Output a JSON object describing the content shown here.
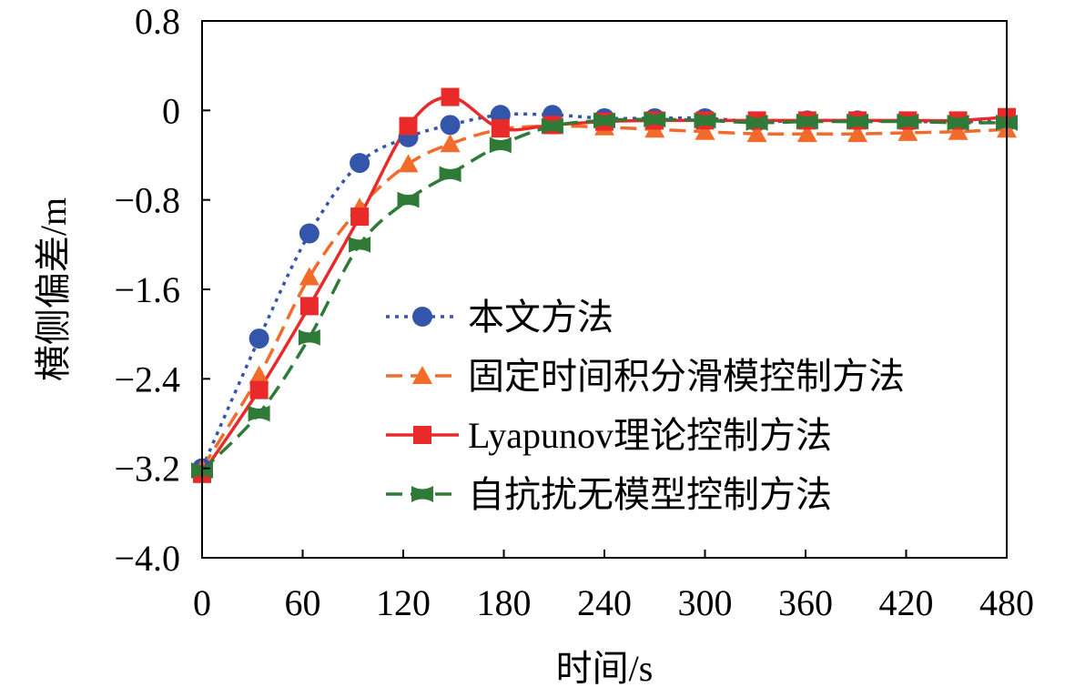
{
  "chart_data": {
    "type": "line",
    "title": "",
    "xlabel": "时间/s",
    "ylabel": "横侧偏差/m",
    "xlim": [
      0,
      480
    ],
    "ylim": [
      -4.0,
      0.8
    ],
    "xticks": [
      0,
      60,
      120,
      180,
      240,
      300,
      360,
      420,
      480
    ],
    "xtick_labels": [
      "0",
      "60",
      "120",
      "180",
      "240",
      "300",
      "360",
      "420",
      "480"
    ],
    "yticks": [
      0.8,
      0,
      -0.8,
      -1.6,
      -2.4,
      -3.2,
      -4.0
    ],
    "ytick_labels": [
      "0.8",
      "0",
      "−0.8",
      "−1.6",
      "−2.4",
      "−3.2",
      "−4.0"
    ],
    "grid": false,
    "legend_position": "center-right",
    "series": [
      {
        "name": "本文方法",
        "color": "#3355aa",
        "line": "dotted",
        "marker": "circle",
        "x": [
          0,
          34,
          64,
          94,
          123,
          148,
          178,
          209,
          240,
          270,
          300,
          331,
          361,
          391,
          421,
          451,
          480
        ],
        "y": [
          -3.2,
          -2.04,
          -1.1,
          -0.47,
          -0.24,
          -0.13,
          -0.04,
          -0.04,
          -0.07,
          -0.07,
          -0.07,
          -0.1,
          -0.09,
          -0.09,
          -0.1,
          -0.1,
          -0.1
        ]
      },
      {
        "name": "固定时间积分滑模控制方法",
        "color": "#f26b2a",
        "line": "dashed",
        "marker": "triangle",
        "x": [
          0,
          34,
          64,
          94,
          123,
          148,
          178,
          209,
          240,
          270,
          300,
          331,
          361,
          391,
          421,
          451,
          480
        ],
        "y": [
          -3.2,
          -2.37,
          -1.49,
          -0.87,
          -0.48,
          -0.3,
          -0.17,
          -0.14,
          -0.15,
          -0.17,
          -0.19,
          -0.21,
          -0.21,
          -0.21,
          -0.2,
          -0.19,
          -0.17
        ]
      },
      {
        "name": "Lyapunov理论控制方法",
        "color": "#e82a2a",
        "line": "solid",
        "marker": "square",
        "x": [
          0,
          34,
          64,
          94,
          123,
          148,
          178,
          209,
          240,
          270,
          300,
          331,
          361,
          391,
          421,
          451,
          480
        ],
        "y": [
          -3.25,
          -2.5,
          -1.75,
          -0.95,
          -0.14,
          0.12,
          -0.16,
          -0.13,
          -0.1,
          -0.09,
          -0.09,
          -0.09,
          -0.09,
          -0.09,
          -0.09,
          -0.09,
          -0.06
        ]
      },
      {
        "name": "自抗扰无模型控制方法",
        "color": "#2f7a37",
        "line": "dashed",
        "marker": "bowtie",
        "x": [
          0,
          34,
          64,
          94,
          123,
          148,
          178,
          209,
          240,
          270,
          300,
          331,
          361,
          391,
          421,
          451,
          480
        ],
        "y": [
          -3.22,
          -2.71,
          -2.03,
          -1.2,
          -0.8,
          -0.57,
          -0.31,
          -0.14,
          -0.09,
          -0.08,
          -0.09,
          -0.11,
          -0.1,
          -0.1,
          -0.1,
          -0.11,
          -0.11
        ]
      }
    ]
  }
}
